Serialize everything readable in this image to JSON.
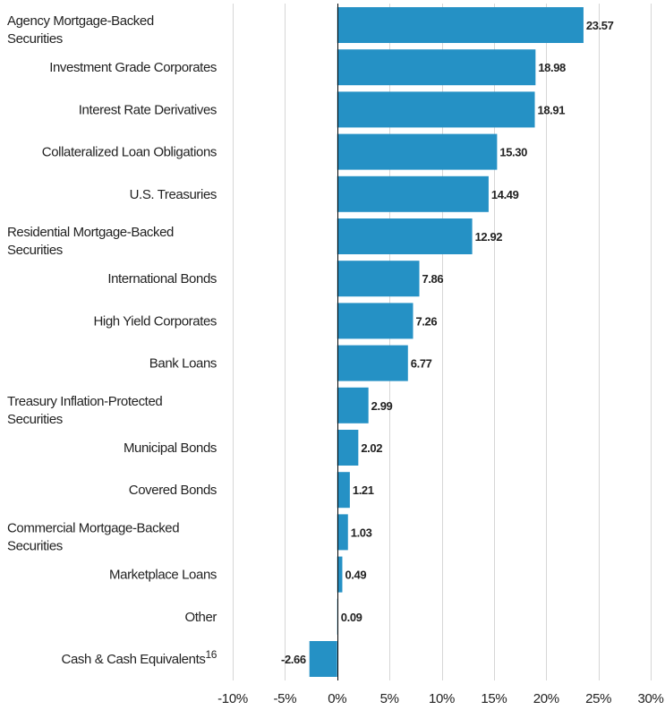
{
  "chart_data": {
    "type": "bar",
    "orientation": "horizontal",
    "title": "",
    "xlabel": "",
    "ylabel": "",
    "xlim": [
      -10,
      30
    ],
    "x_ticks": [
      -10,
      -5,
      0,
      5,
      10,
      15,
      20,
      25,
      30
    ],
    "x_tick_labels": [
      "-10%",
      "-5%",
      "0%",
      "5%",
      "10%",
      "15%",
      "20%",
      "25%",
      "30%"
    ],
    "grid": true,
    "bar_color": "#2591c5",
    "categories": [
      "Agency Mortgage-Backed Securities",
      "Investment Grade Corporates",
      "Interest Rate Derivatives",
      "Collateralized Loan Obligations",
      "U.S. Treasuries",
      "Residential Mortgage-Backed Securities",
      "International Bonds",
      "High Yield Corporates",
      "Bank Loans",
      "Treasury Inflation-Protected Securities",
      "Municipal Bonds",
      "Covered Bonds",
      "Commercial Mortgage-Backed Securities",
      "Marketplace Loans",
      "Other",
      "Cash & Cash Equivalents"
    ],
    "category_label_lines": [
      [
        "Agency Mortgage-Backed",
        "Securities"
      ],
      [
        "Investment Grade Corporates"
      ],
      [
        "Interest Rate Derivatives"
      ],
      [
        "Collateralized Loan Obligations"
      ],
      [
        "U.S. Treasuries"
      ],
      [
        "Residential Mortgage-Backed",
        "Securities"
      ],
      [
        "International Bonds"
      ],
      [
        "High Yield Corporates"
      ],
      [
        "Bank Loans"
      ],
      [
        "Treasury Inflation-Protected",
        "Securities"
      ],
      [
        "Municipal Bonds"
      ],
      [
        "Covered Bonds"
      ],
      [
        "Commercial Mortgage-Backed",
        "Securities"
      ],
      [
        "Marketplace Loans"
      ],
      [
        "Other"
      ],
      [
        "Cash & Cash Equivalents"
      ]
    ],
    "category_superscripts": [
      "",
      "",
      "",
      "",
      "",
      "",
      "",
      "",
      "",
      "",
      "",
      "",
      "",
      "",
      "",
      "16"
    ],
    "values": [
      23.57,
      18.98,
      18.91,
      15.3,
      14.49,
      12.92,
      7.86,
      7.26,
      6.77,
      2.99,
      2.02,
      1.21,
      1.03,
      0.49,
      0.09,
      -2.66
    ],
    "value_labels": [
      "23.57",
      "18.98",
      "18.91",
      "15.30",
      "14.49",
      "12.92",
      "7.86",
      "7.26",
      "6.77",
      "2.99",
      "2.02",
      "1.21",
      "1.03",
      "0.49",
      "0.09",
      "-2.66"
    ]
  }
}
